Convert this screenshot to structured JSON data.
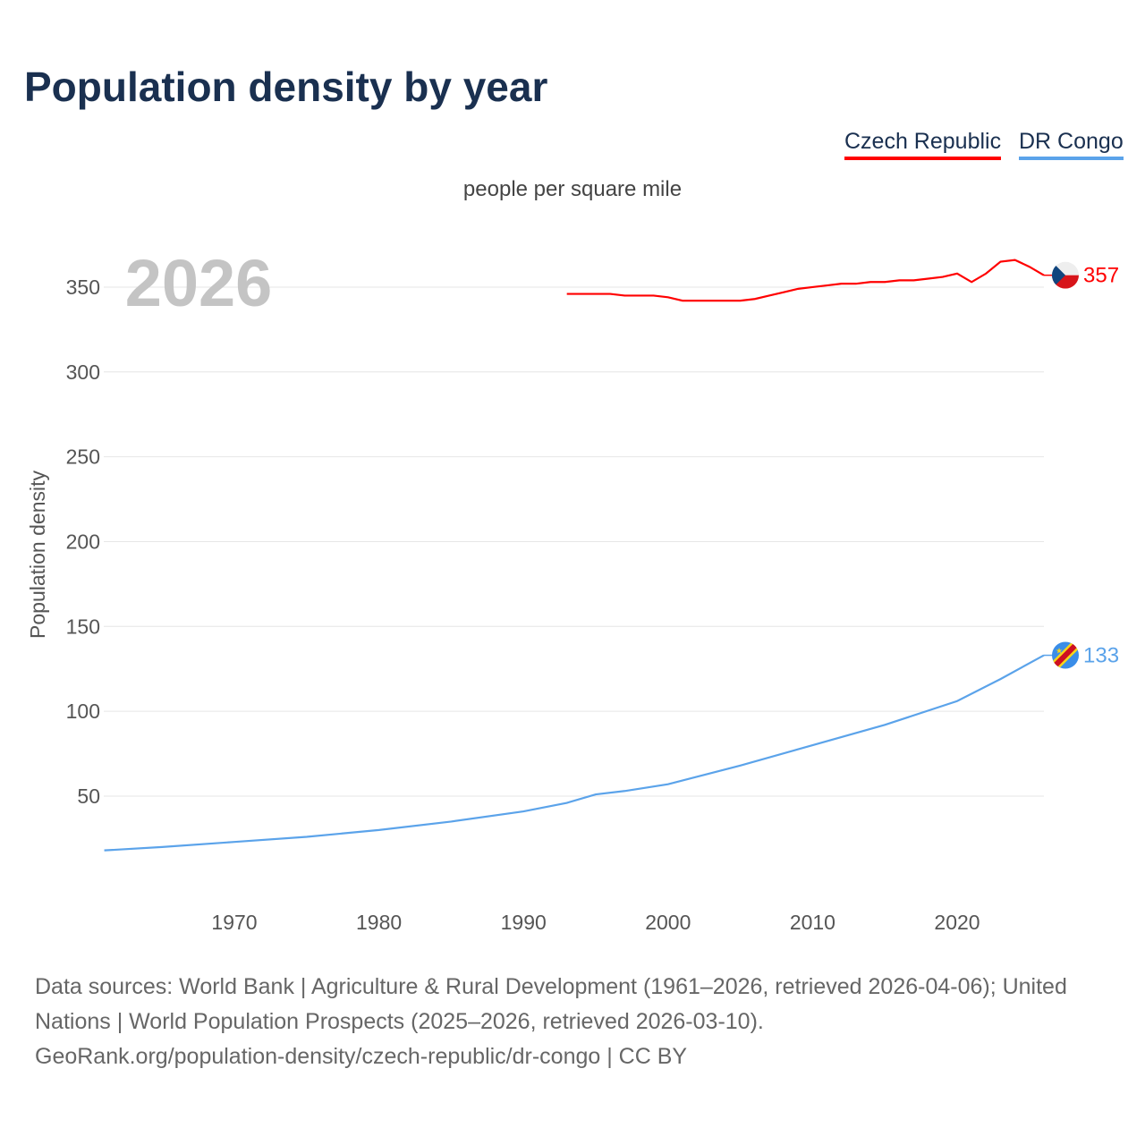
{
  "title": "Population density by year",
  "unit_label": "people per square mile",
  "year_label": "2026",
  "footer": {
    "sources": "Data sources: World Bank | Agriculture & Rural Development (1961–2026, retrieved 2026-04-06); United Nations | World Population Prospects (2025–2026, retrieved 2026-03-10).",
    "credit": "GeoRank.org/population-density/czech-republic/dr-congo | CC BY"
  },
  "chart_data": {
    "type": "line",
    "title": "Population density by year",
    "xlabel": "",
    "ylabel": "Population density",
    "xlim": [
      1961,
      2026
    ],
    "ylim": [
      0,
      375
    ],
    "xticks": [
      1970,
      1980,
      1990,
      2000,
      2010,
      2020
    ],
    "yticks": [
      50,
      100,
      150,
      200,
      250,
      300,
      350
    ],
    "grid": true,
    "legend_position": "top-right",
    "series": [
      {
        "name": "Czech Republic",
        "color": "#ff0000",
        "end_label": "357",
        "x": [
          1993,
          1996,
          1997,
          1999,
          2000,
          2001,
          2005,
          2006,
          2007,
          2008,
          2009,
          2010,
          2011,
          2012,
          2013,
          2014,
          2015,
          2016,
          2017,
          2018,
          2019,
          2020,
          2021,
          2022,
          2023,
          2024,
          2025,
          2026
        ],
        "y": [
          346,
          346,
          345,
          345,
          344,
          342,
          342,
          343,
          345,
          347,
          349,
          350,
          351,
          352,
          352,
          353,
          353,
          354,
          354,
          355,
          356,
          358,
          353,
          358,
          365,
          366,
          362,
          357
        ]
      },
      {
        "name": "DR Congo",
        "color": "#5ba3ea",
        "end_label": "133",
        "x": [
          1961,
          1965,
          1970,
          1975,
          1980,
          1985,
          1990,
          1993,
          1995,
          1997,
          2000,
          2005,
          2010,
          2015,
          2020,
          2023,
          2026
        ],
        "y": [
          18,
          20,
          23,
          26,
          30,
          35,
          41,
          46,
          51,
          53,
          57,
          68,
          80,
          92,
          106,
          119,
          133
        ]
      }
    ]
  }
}
